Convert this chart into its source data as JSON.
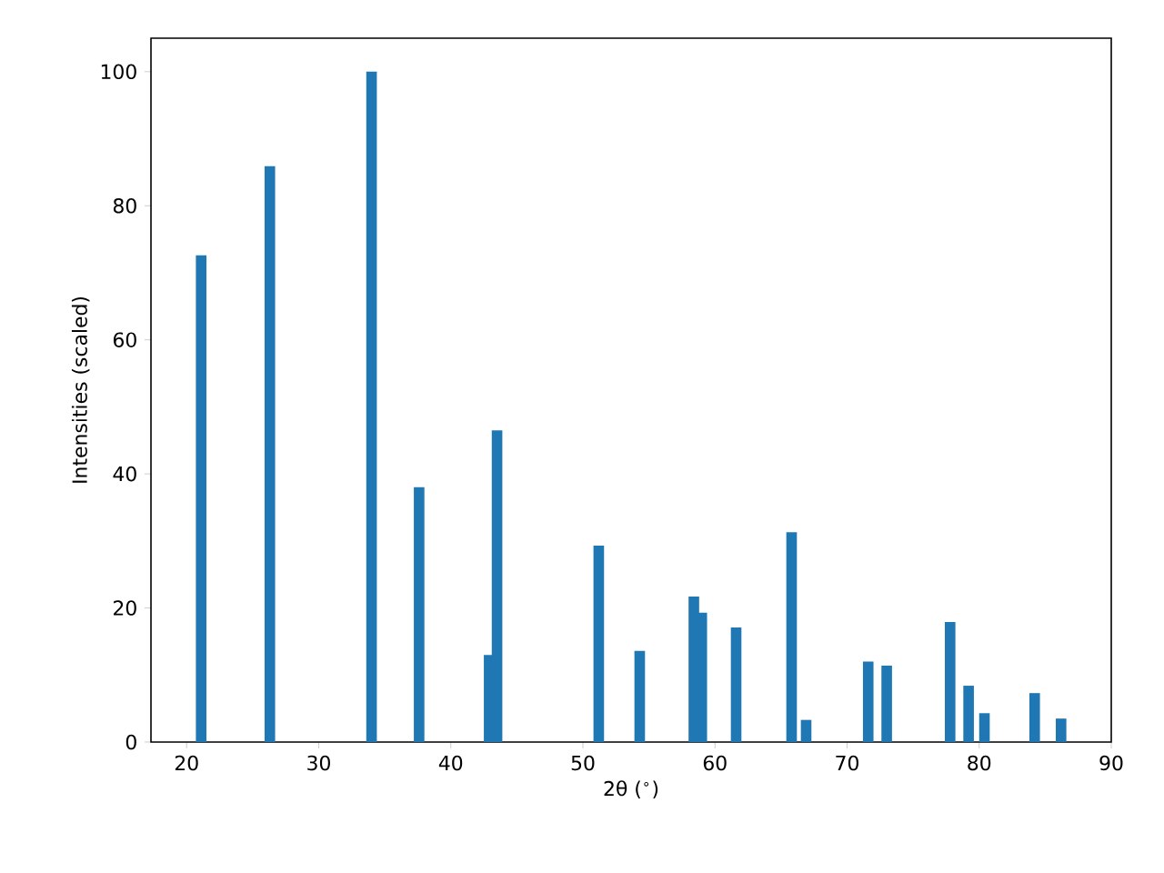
{
  "chart_data": {
    "type": "bar",
    "xlabel": "2θ ($^{∘}$)",
    "ylabel": "Intensities (scaled)",
    "x": [
      21.1,
      26.3,
      34.0,
      37.6,
      42.9,
      43.5,
      51.2,
      54.3,
      58.4,
      59.0,
      61.6,
      65.8,
      66.9,
      71.6,
      73.0,
      77.8,
      79.2,
      80.4,
      84.2,
      86.2
    ],
    "values": [
      72.6,
      85.9,
      100,
      38.0,
      13.0,
      46.5,
      29.3,
      13.6,
      21.7,
      19.3,
      17.1,
      31.3,
      3.3,
      12.0,
      11.4,
      17.9,
      8.4,
      4.3,
      7.3,
      3.5
    ],
    "color": "#1f77b4",
    "xlim": [
      17.3,
      90
    ],
    "ylim": [
      0,
      105
    ],
    "xticks": [
      20,
      30,
      40,
      50,
      60,
      70,
      80,
      90
    ],
    "yticks": [
      0,
      20,
      40,
      60,
      80,
      100
    ],
    "grid": false
  }
}
